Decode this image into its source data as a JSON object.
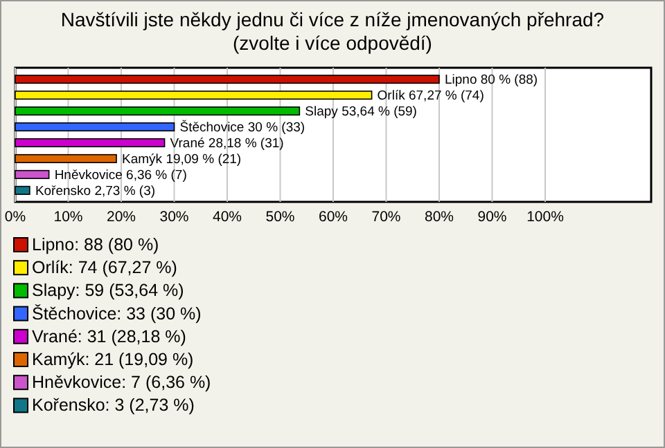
{
  "chart_data": {
    "type": "bar",
    "orientation": "horizontal",
    "title": "Navštívili jste někdy jednu či více z níže jmenovaných přehrad?",
    "subtitle": "(zvolte i více odpovědí)",
    "categories": [
      null,
      null,
      null,
      null,
      null,
      null,
      null,
      null
    ],
    "values": [
      80,
      67.27,
      53.64,
      30,
      28.18,
      19.09,
      6.36,
      2.73
    ],
    "colors": [
      "#cc1100",
      "#ffee00",
      "#00bb00",
      "#3366ff",
      "#cc00cc",
      "#dd6600",
      "#cc55cc",
      "#117788"
    ],
    "value_labels": [
      "Lipno 80 % (88)",
      "Orlík 67,27 % (74)",
      "Slapy 53,64 % (59)",
      "Štěchovice 30 % (33)",
      "Vrané 28,18 % (31)",
      "Kamýk 19,09 % (21)",
      "Hněvkovice 6,36 % (7)",
      "Kořensko 2,73 % (3)"
    ],
    "annotations": [
      "Lipno: 88 (80 %)",
      "Orlík: 74 (67,27 %)",
      "Slapy: 59 (53,64 %)",
      "Štěchovice: 33 (30 %)",
      "Vrané: 31 (28,18 %)",
      "Kamýk: 21 (19,09 %)",
      "Hněvkovice: 7 (6,36 %)",
      "Kořensko: 3 (2,73 %)"
    ],
    "xlim": [
      0,
      120
    ],
    "xticks": [
      {
        "value": 0,
        "label": "0%"
      },
      {
        "value": 10,
        "label": "10%"
      },
      {
        "value": 20,
        "label": "20%"
      },
      {
        "value": 30,
        "label": "30%"
      },
      {
        "value": 40,
        "label": "40%"
      },
      {
        "value": 50,
        "label": "50%"
      },
      {
        "value": 60,
        "label": "60%"
      },
      {
        "value": 70,
        "label": "70%"
      },
      {
        "value": 80,
        "label": "80%"
      },
      {
        "value": 90,
        "label": "90%"
      },
      {
        "value": 100,
        "label": "100%"
      }
    ],
    "grid": "x"
  }
}
